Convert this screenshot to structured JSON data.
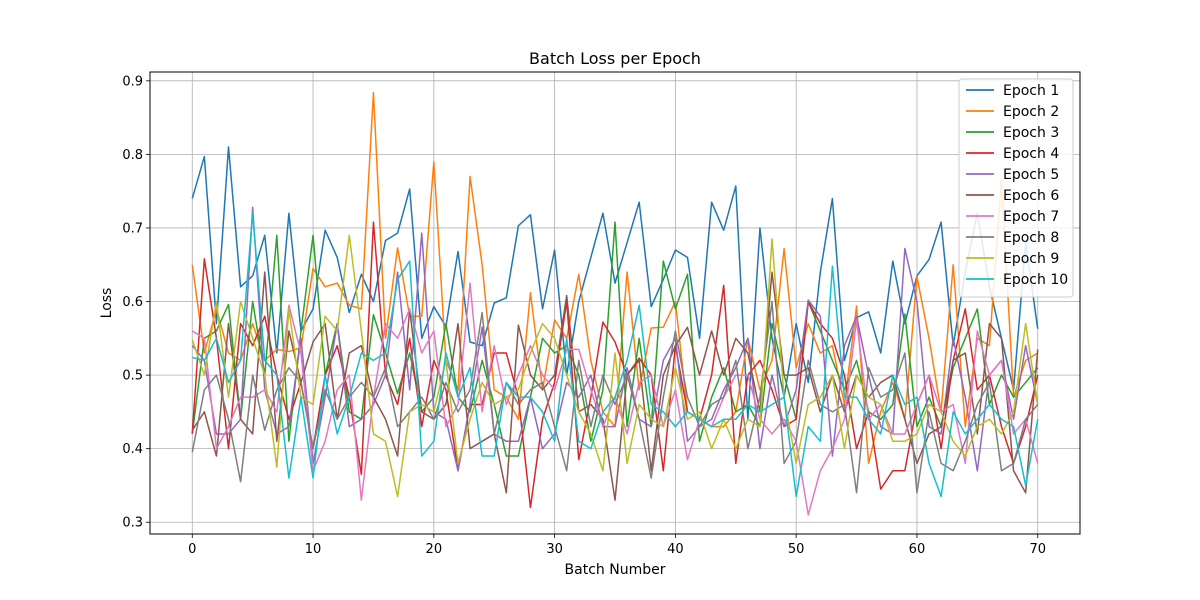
{
  "chart_data": {
    "type": "line",
    "title": "Batch Loss per Epoch",
    "xlabel": "Batch Number",
    "ylabel": "Loss",
    "xlim": [
      -3.5,
      73.5
    ],
    "ylim": [
      0.284,
      0.912
    ],
    "xticks": [
      0,
      10,
      20,
      30,
      40,
      50,
      60,
      70
    ],
    "yticks": [
      0.3,
      0.4,
      0.5,
      0.6,
      0.7,
      0.8,
      0.9
    ],
    "grid": true,
    "legend_position": "top-right",
    "x": [
      0,
      1,
      2,
      3,
      4,
      5,
      6,
      7,
      8,
      9,
      10,
      11,
      12,
      13,
      14,
      15,
      16,
      17,
      18,
      19,
      20,
      21,
      22,
      23,
      24,
      25,
      26,
      27,
      28,
      29,
      30,
      31,
      32,
      33,
      34,
      35,
      36,
      37,
      38,
      39,
      40,
      41,
      42,
      43,
      44,
      45,
      46,
      47,
      48,
      49,
      50,
      51,
      52,
      53,
      54,
      55,
      56,
      57,
      58,
      59,
      60,
      61,
      62,
      63,
      64,
      65,
      66,
      67,
      68,
      69,
      70
    ],
    "series": [
      {
        "name": "Epoch 1",
        "color": "#1f77b4",
        "values": [
          0.74,
          0.797,
          0.57,
          0.81,
          0.62,
          0.635,
          0.69,
          0.53,
          0.72,
          0.56,
          0.59,
          0.697,
          0.66,
          0.585,
          0.637,
          0.6,
          0.683,
          0.693,
          0.753,
          0.55,
          0.593,
          0.566,
          0.668,
          0.545,
          0.54,
          0.598,
          0.605,
          0.703,
          0.718,
          0.59,
          0.67,
          0.5,
          0.6,
          0.66,
          0.72,
          0.625,
          0.68,
          0.735,
          0.593,
          0.63,
          0.67,
          0.66,
          0.55,
          0.735,
          0.697,
          0.757,
          0.44,
          0.7,
          0.55,
          0.47,
          0.57,
          0.49,
          0.64,
          0.74,
          0.52,
          0.578,
          0.586,
          0.53,
          0.655,
          0.57,
          0.635,
          0.657,
          0.708,
          0.54,
          0.64,
          0.72,
          0.62,
          0.55,
          0.48,
          0.68,
          0.563
        ]
      },
      {
        "name": "Epoch 2",
        "color": "#ff7f0e",
        "values": [
          0.65,
          0.53,
          0.59,
          0.53,
          0.52,
          0.57,
          0.52,
          0.535,
          0.532,
          0.537,
          0.645,
          0.62,
          0.625,
          0.595,
          0.59,
          0.884,
          0.55,
          0.673,
          0.58,
          0.58,
          0.79,
          0.52,
          0.48,
          0.77,
          0.65,
          0.48,
          0.47,
          0.44,
          0.612,
          0.48,
          0.575,
          0.55,
          0.637,
          0.52,
          0.45,
          0.43,
          0.64,
          0.48,
          0.564,
          0.565,
          0.6,
          0.45,
          0.44,
          0.43,
          0.43,
          0.45,
          0.55,
          0.48,
          0.52,
          0.672,
          0.51,
          0.57,
          0.53,
          0.54,
          0.46,
          0.594,
          0.38,
          0.45,
          0.49,
          0.44,
          0.634,
          0.55,
          0.45,
          0.65,
          0.43,
          0.55,
          0.54,
          0.765,
          0.47,
          0.52,
          0.53
        ]
      },
      {
        "name": "Epoch 3",
        "color": "#2ca02c",
        "values": [
          0.42,
          0.55,
          0.56,
          0.596,
          0.44,
          0.6,
          0.5,
          0.69,
          0.41,
          0.56,
          0.69,
          0.5,
          0.57,
          0.45,
          0.44,
          0.582,
          0.53,
          0.475,
          0.53,
          0.45,
          0.47,
          0.57,
          0.47,
          0.45,
          0.52,
          0.46,
          0.39,
          0.39,
          0.47,
          0.55,
          0.53,
          0.54,
          0.5,
          0.41,
          0.48,
          0.708,
          0.43,
          0.55,
          0.43,
          0.655,
          0.59,
          0.637,
          0.41,
          0.47,
          0.51,
          0.45,
          0.46,
          0.43,
          0.57,
          0.5,
          0.44,
          0.6,
          0.56,
          0.52,
          0.48,
          0.52,
          0.45,
          0.44,
          0.46,
          0.583,
          0.43,
          0.47,
          0.43,
          0.51,
          0.55,
          0.59,
          0.46,
          0.5,
          0.47,
          0.49,
          0.51
        ]
      },
      {
        "name": "Epoch 4",
        "color": "#d62728",
        "values": [
          0.42,
          0.658,
          0.55,
          0.4,
          0.57,
          0.54,
          0.58,
          0.5,
          0.44,
          0.49,
          0.4,
          0.5,
          0.54,
          0.47,
          0.365,
          0.708,
          0.5,
          0.46,
          0.55,
          0.43,
          0.52,
          0.48,
          0.37,
          0.46,
          0.46,
          0.53,
          0.53,
          0.47,
          0.32,
          0.44,
          0.49,
          0.6,
          0.385,
          0.47,
          0.572,
          0.545,
          0.5,
          0.523,
          0.5,
          0.37,
          0.54,
          0.45,
          0.44,
          0.5,
          0.622,
          0.38,
          0.5,
          0.52,
          0.48,
          0.43,
          0.44,
          0.6,
          0.57,
          0.55,
          0.5,
          0.4,
          0.45,
          0.345,
          0.37,
          0.37,
          0.46,
          0.5,
          0.4,
          0.52,
          0.59,
          0.48,
          0.5,
          0.43,
          0.38,
          0.43,
          0.5
        ]
      },
      {
        "name": "Epoch 5",
        "color": "#9467bd",
        "values": [
          0.54,
          0.52,
          0.42,
          0.42,
          0.44,
          0.728,
          0.48,
          0.42,
          0.43,
          0.55,
          0.38,
          0.47,
          0.57,
          0.43,
          0.44,
          0.46,
          0.5,
          0.64,
          0.48,
          0.693,
          0.45,
          0.44,
          0.37,
          0.46,
          0.565,
          0.42,
          0.41,
          0.41,
          0.47,
          0.4,
          0.42,
          0.49,
          0.47,
          0.5,
          0.43,
          0.43,
          0.51,
          0.44,
          0.43,
          0.52,
          0.55,
          0.41,
          0.43,
          0.44,
          0.48,
          0.51,
          0.55,
          0.4,
          0.5,
          0.43,
          0.48,
          0.602,
          0.58,
          0.39,
          0.54,
          0.58,
          0.5,
          0.43,
          0.42,
          0.672,
          0.6,
          0.43,
          0.42,
          0.55,
          0.47,
          0.37,
          0.5,
          0.52,
          0.44,
          0.54,
          0.46
        ]
      },
      {
        "name": "Epoch 6",
        "color": "#8c564b",
        "values": [
          0.425,
          0.45,
          0.39,
          0.57,
          0.44,
          0.42,
          0.64,
          0.41,
          0.56,
          0.49,
          0.545,
          0.57,
          0.44,
          0.53,
          0.54,
          0.47,
          0.44,
          0.39,
          0.59,
          0.45,
          0.44,
          0.46,
          0.57,
          0.4,
          0.41,
          0.42,
          0.34,
          0.568,
          0.5,
          0.48,
          0.5,
          0.608,
          0.45,
          0.46,
          0.44,
          0.33,
          0.5,
          0.52,
          0.37,
          0.5,
          0.54,
          0.565,
          0.5,
          0.56,
          0.5,
          0.55,
          0.53,
          0.45,
          0.64,
          0.5,
          0.5,
          0.51,
          0.45,
          0.5,
          0.45,
          0.5,
          0.47,
          0.49,
          0.5,
          0.44,
          0.38,
          0.42,
          0.43,
          0.52,
          0.53,
          0.42,
          0.57,
          0.55,
          0.37,
          0.34,
          0.535
        ]
      },
      {
        "name": "Epoch 7",
        "color": "#e377c2",
        "values": [
          0.56,
          0.55,
          0.4,
          0.43,
          0.47,
          0.47,
          0.48,
          0.45,
          0.595,
          0.53,
          0.37,
          0.41,
          0.48,
          0.5,
          0.33,
          0.47,
          0.57,
          0.55,
          0.59,
          0.53,
          0.56,
          0.43,
          0.46,
          0.625,
          0.45,
          0.54,
          0.46,
          0.5,
          0.54,
          0.5,
          0.48,
          0.535,
          0.535,
          0.48,
          0.43,
          0.47,
          0.42,
          0.49,
          0.5,
          0.43,
          0.48,
          0.385,
          0.44,
          0.43,
          0.47,
          0.5,
          0.5,
          0.44,
          0.42,
          0.44,
          0.41,
          0.31,
          0.37,
          0.4,
          0.44,
          0.575,
          0.44,
          0.46,
          0.42,
          0.42,
          0.46,
          0.5,
          0.45,
          0.46,
          0.38,
          0.56,
          0.5,
          0.52,
          0.42,
          0.44,
          0.38
        ]
      },
      {
        "name": "Epoch 8",
        "color": "#7f7f7f",
        "values": [
          0.395,
          0.48,
          0.5,
          0.44,
          0.355,
          0.5,
          0.425,
          0.48,
          0.51,
          0.49,
          0.4,
          0.48,
          0.44,
          0.47,
          0.49,
          0.47,
          0.51,
          0.43,
          0.45,
          0.47,
          0.44,
          0.49,
          0.45,
          0.48,
          0.585,
          0.42,
          0.49,
          0.46,
          0.48,
          0.49,
          0.43,
          0.37,
          0.52,
          0.43,
          0.5,
          0.46,
          0.5,
          0.44,
          0.36,
          0.47,
          0.56,
          0.47,
          0.43,
          0.46,
          0.47,
          0.52,
          0.4,
          0.47,
          0.6,
          0.38,
          0.41,
          0.52,
          0.46,
          0.45,
          0.46,
          0.34,
          0.51,
          0.47,
          0.48,
          0.53,
          0.34,
          0.45,
          0.38,
          0.37,
          0.41,
          0.46,
          0.49,
          0.37,
          0.38,
          0.44,
          0.46
        ]
      },
      {
        "name": "Epoch 9",
        "color": "#bcbd22",
        "values": [
          0.548,
          0.5,
          0.6,
          0.47,
          0.6,
          0.55,
          0.5,
          0.375,
          0.59,
          0.47,
          0.46,
          0.58,
          0.56,
          0.69,
          0.56,
          0.42,
          0.41,
          0.335,
          0.45,
          0.46,
          0.45,
          0.52,
          0.38,
          0.44,
          0.49,
          0.46,
          0.47,
          0.48,
          0.53,
          0.57,
          0.55,
          0.5,
          0.45,
          0.42,
          0.37,
          0.53,
          0.38,
          0.46,
          0.44,
          0.43,
          0.51,
          0.44,
          0.45,
          0.4,
          0.44,
          0.4,
          0.44,
          0.43,
          0.685,
          0.47,
          0.38,
          0.46,
          0.47,
          0.5,
          0.4,
          0.5,
          0.47,
          0.46,
          0.41,
          0.41,
          0.42,
          0.46,
          0.45,
          0.41,
          0.39,
          0.43,
          0.44,
          0.42,
          0.45,
          0.57,
          0.46
        ]
      },
      {
        "name": "Epoch 10",
        "color": "#17becf",
        "values": [
          0.524,
          0.52,
          0.55,
          0.49,
          0.52,
          0.72,
          0.52,
          0.5,
          0.36,
          0.47,
          0.36,
          0.5,
          0.42,
          0.47,
          0.53,
          0.52,
          0.53,
          0.63,
          0.655,
          0.39,
          0.41,
          0.53,
          0.47,
          0.51,
          0.39,
          0.39,
          0.49,
          0.47,
          0.47,
          0.45,
          0.41,
          0.55,
          0.41,
          0.4,
          0.45,
          0.47,
          0.52,
          0.595,
          0.46,
          0.45,
          0.43,
          0.45,
          0.44,
          0.43,
          0.44,
          0.44,
          0.46,
          0.45,
          0.46,
          0.47,
          0.335,
          0.43,
          0.41,
          0.648,
          0.47,
          0.47,
          0.44,
          0.42,
          0.5,
          0.46,
          0.47,
          0.38,
          0.335,
          0.45,
          0.42,
          0.44,
          0.46,
          0.44,
          0.43,
          0.35,
          0.44
        ]
      }
    ]
  }
}
